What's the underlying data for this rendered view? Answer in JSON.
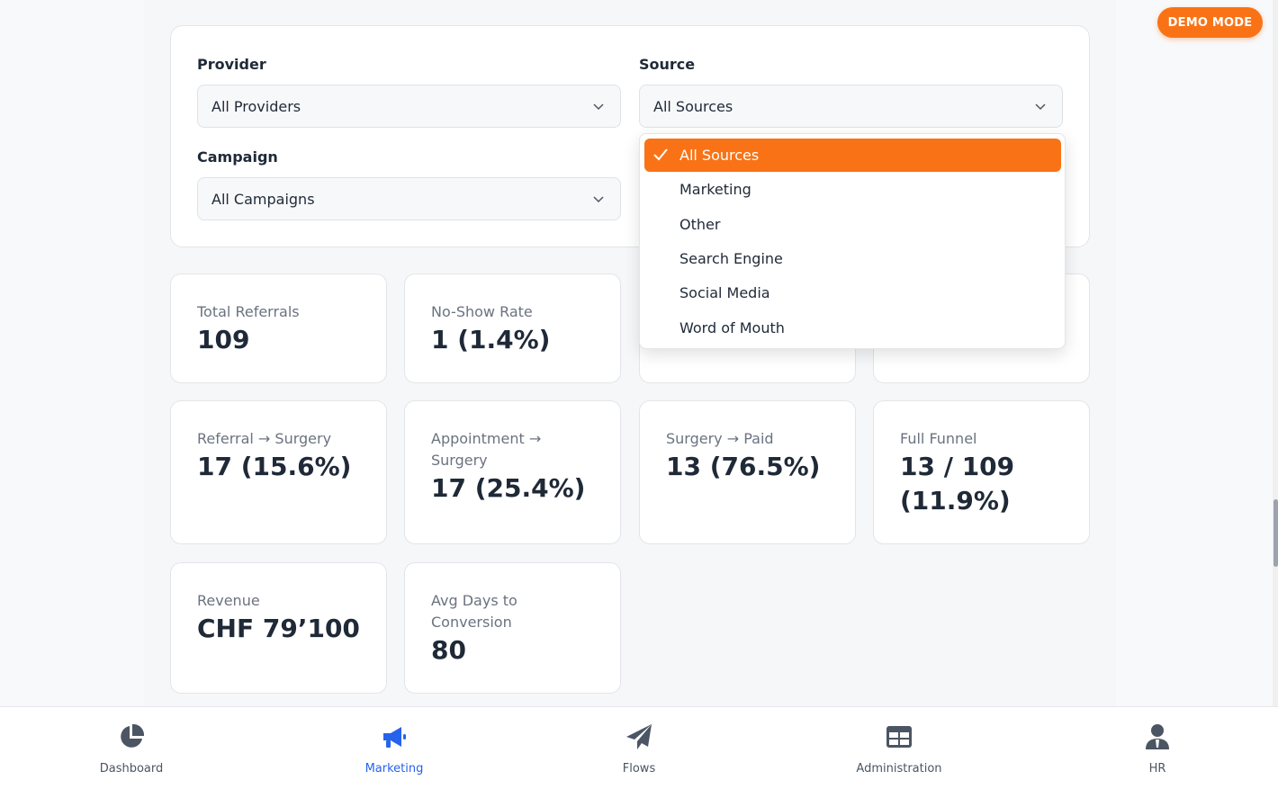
{
  "demo_badge": "DEMO MODE",
  "filters": {
    "provider": {
      "label": "Provider",
      "value": "All Providers"
    },
    "source": {
      "label": "Source",
      "value": "All Sources"
    },
    "campaign": {
      "label": "Campaign",
      "value": "All Campaigns"
    }
  },
  "source_dropdown": {
    "options": [
      "All Sources",
      "Marketing",
      "Other",
      "Search Engine",
      "Social Media",
      "Word of Mouth"
    ],
    "selected": "All Sources"
  },
  "metrics": {
    "total_referrals": {
      "label": "Total Referrals",
      "value": "109"
    },
    "no_show_rate": {
      "label": "No-Show Rate",
      "value": "1 (1.4%)"
    },
    "referral_surgery": {
      "label": "Referral → Surgery",
      "value": "17 (15.6%)"
    },
    "appointment_surgery": {
      "label": "Appointment → Surgery",
      "value": "17 (25.4%)"
    },
    "surgery_paid": {
      "label": "Surgery → Paid",
      "value": "13 (76.5%)"
    },
    "full_funnel": {
      "label": "Full Funnel",
      "value": "13 / 109 (11.9%)"
    },
    "revenue": {
      "label": "Revenue",
      "value": "CHF 79’100"
    },
    "avg_days": {
      "label": "Avg Days to Conversion",
      "value": "80"
    }
  },
  "nav": {
    "dashboard": "Dashboard",
    "marketing": "Marketing",
    "flows": "Flows",
    "administration": "Administration",
    "hr": "HR",
    "active": "marketing",
    "icons": [
      "pie-chart-icon",
      "megaphone-icon",
      "paper-plane-icon",
      "table-icon",
      "user-tie-icon"
    ],
    "active_color": "#2563eb",
    "inactive_color": "#4b5563"
  },
  "accent_color": "#f97316"
}
